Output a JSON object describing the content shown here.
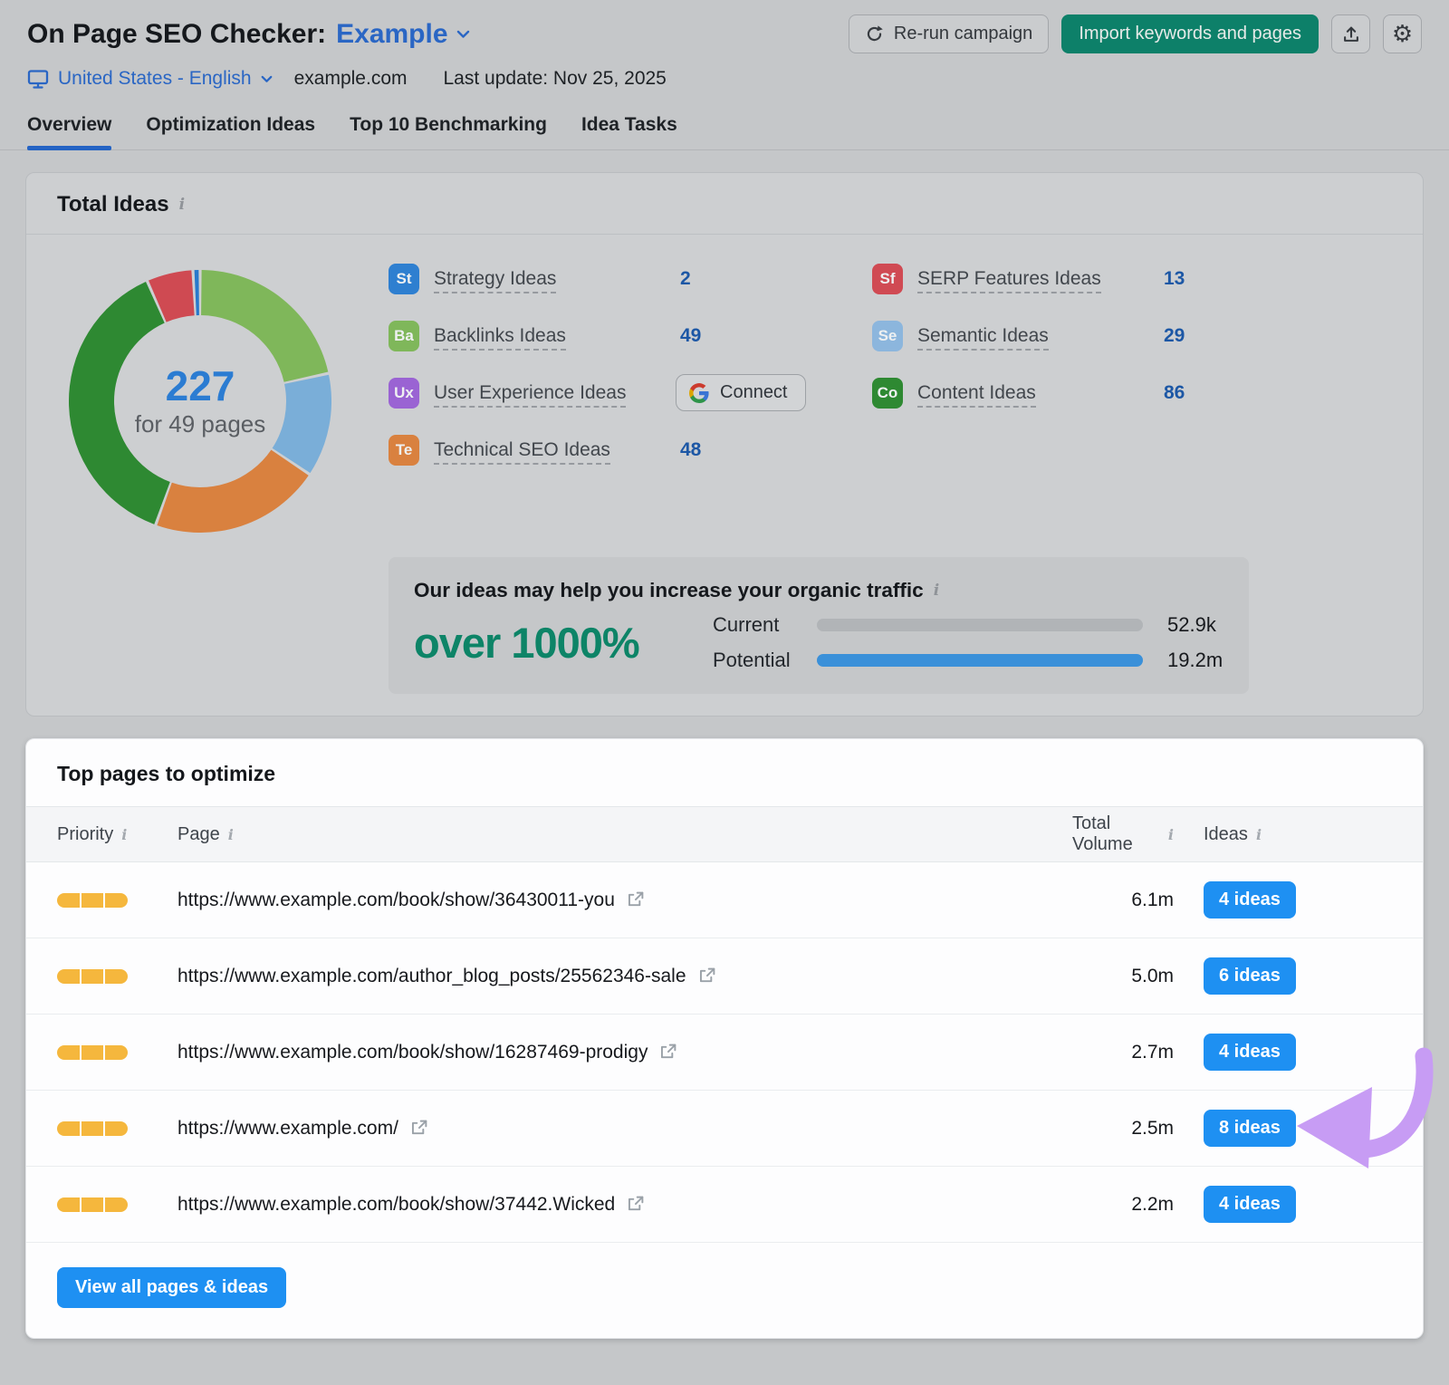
{
  "header": {
    "title": "On Page SEO Checker:",
    "project": "Example",
    "locale": "United States - English",
    "domain": "example.com",
    "last_update": "Last update: Nov 25, 2025",
    "rerun_button": "Re-run campaign",
    "import_button": "Import keywords and pages"
  },
  "tabs": [
    {
      "label": "Overview",
      "active": true
    },
    {
      "label": "Optimization Ideas",
      "active": false
    },
    {
      "label": "Top 10 Benchmarking",
      "active": false
    },
    {
      "label": "Idea Tasks",
      "active": false
    }
  ],
  "colors": {
    "accent_blue": "#1e90f2",
    "accent_green": "#0d8069",
    "link_blue": "#2a66c4",
    "tab_active_blue": "#2463c4",
    "count_blue": "#1c57a5",
    "priority_yellow": "#f5b73d",
    "arrow_purple": "#c79cf4",
    "bar_current_gray": "#b1b4b7",
    "bar_potential_blue": "#3a90d9"
  },
  "total_ideas": {
    "card_title": "Total Ideas",
    "donut_center_value": "227",
    "donut_center_label": "for 49 pages",
    "items": [
      {
        "abbr": "St",
        "label": "Strategy Ideas",
        "count": "2",
        "color": "#2e7fd0"
      },
      {
        "abbr": "Ba",
        "label": "Backlinks Ideas",
        "count": "49",
        "color": "#7fb75a"
      },
      {
        "abbr": "Ux",
        "label": "User Experience Ideas",
        "count": "",
        "color": "#9a63d3",
        "action": "Connect"
      },
      {
        "abbr": "Te",
        "label": "Technical SEO Ideas",
        "count": "48",
        "color": "#d9813f"
      },
      {
        "abbr": "Sf",
        "label": "SERP Features Ideas",
        "count": "13",
        "color": "#d04a53"
      },
      {
        "abbr": "Se",
        "label": "Semantic Ideas",
        "count": "29",
        "color": "#8cb6dd"
      },
      {
        "abbr": "Co",
        "label": "Content Ideas",
        "count": "86",
        "color": "#2e8932"
      }
    ],
    "traffic": {
      "title": "Our ideas may help you increase your organic traffic",
      "highlight": "over 1000%",
      "rows": [
        {
          "label": "Current",
          "value": "52.9k"
        },
        {
          "label": "Potential",
          "value": "19.2m"
        }
      ]
    }
  },
  "chart_data": {
    "type": "pie",
    "title": "Total Ideas",
    "center_value": 227,
    "center_label": "for 49 pages",
    "total": 227,
    "pages": 49,
    "legend_position": "right",
    "segments": [
      {
        "label": "Backlinks Ideas",
        "value": 49,
        "color": "#7fb75a"
      },
      {
        "label": "Semantic Ideas",
        "value": 29,
        "color": "#7aaed8"
      },
      {
        "label": "Technical SEO Ideas",
        "value": 48,
        "color": "#d9813f"
      },
      {
        "label": "Content Ideas",
        "value": 86,
        "color": "#2e8932"
      },
      {
        "label": "SERP Features Ideas",
        "value": 13,
        "color": "#cf4a52"
      },
      {
        "label": "Strategy Ideas",
        "value": 2,
        "color": "#2779cc"
      }
    ]
  },
  "top_pages": {
    "card_title": "Top pages to optimize",
    "columns": {
      "priority": "Priority",
      "page": "Page",
      "volume": "Total Volume",
      "ideas": "Ideas"
    },
    "rows": [
      {
        "url": "https://www.example.com/book/show/36430011-you",
        "volume": "6.1m",
        "ideas": "4 ideas"
      },
      {
        "url": "https://www.example.com/author_blog_posts/25562346-sale",
        "volume": "5.0m",
        "ideas": "6 ideas"
      },
      {
        "url": "https://www.example.com/book/show/16287469-prodigy",
        "volume": "2.7m",
        "ideas": "4 ideas"
      },
      {
        "url": "https://www.example.com/",
        "volume": "2.5m",
        "ideas": "8 ideas"
      },
      {
        "url": "https://www.example.com/book/show/37442.Wicked",
        "volume": "2.2m",
        "ideas": "4 ideas"
      }
    ],
    "view_all_button": "View all pages & ideas"
  }
}
